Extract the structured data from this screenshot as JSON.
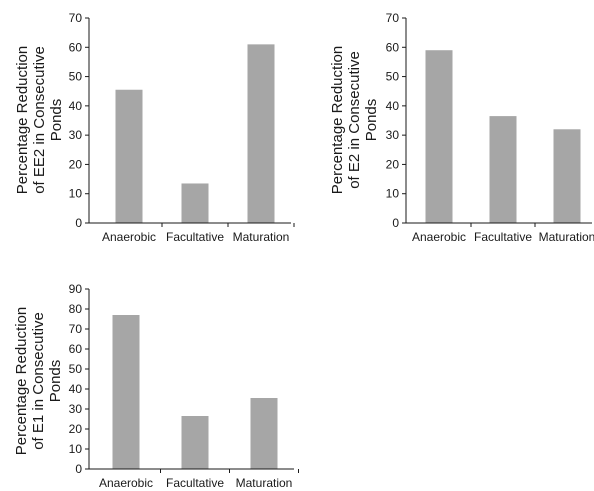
{
  "chart_data": [
    {
      "type": "bar",
      "ylabel_lines": [
        "Percentage Reduction",
        "of EE2 in Consecutive",
        "Ponds"
      ],
      "categories": [
        "Anaerobic",
        "Facultative",
        "Maturation"
      ],
      "values": [
        45.5,
        13.5,
        61
      ],
      "ylim": [
        0,
        70
      ],
      "yticks": [
        0,
        10,
        20,
        30,
        40,
        50,
        60,
        70
      ],
      "grid": false,
      "bar_color": "#a6a6a6"
    },
    {
      "type": "bar",
      "ylabel_lines": [
        "Percentage Reduction",
        "of E2 in Consecutive",
        "Ponds"
      ],
      "categories": [
        "Anaerobic",
        "Facultative",
        "Maturation"
      ],
      "values": [
        59,
        36.5,
        32
      ],
      "ylim": [
        0,
        70
      ],
      "yticks": [
        0,
        10,
        20,
        30,
        40,
        50,
        60,
        70
      ],
      "grid": false,
      "bar_color": "#a6a6a6"
    },
    {
      "type": "bar",
      "ylabel_lines": [
        "Percentage Reduction",
        "of E1 in Consecutive",
        "Ponds"
      ],
      "categories": [
        "Anaerobic",
        "Facultative",
        "Maturation"
      ],
      "values": [
        77,
        26.5,
        35.5
      ],
      "ylim": [
        0,
        90
      ],
      "yticks": [
        0,
        10,
        20,
        30,
        40,
        50,
        60,
        70,
        80,
        90
      ],
      "grid": false,
      "bar_color": "#a6a6a6"
    }
  ]
}
